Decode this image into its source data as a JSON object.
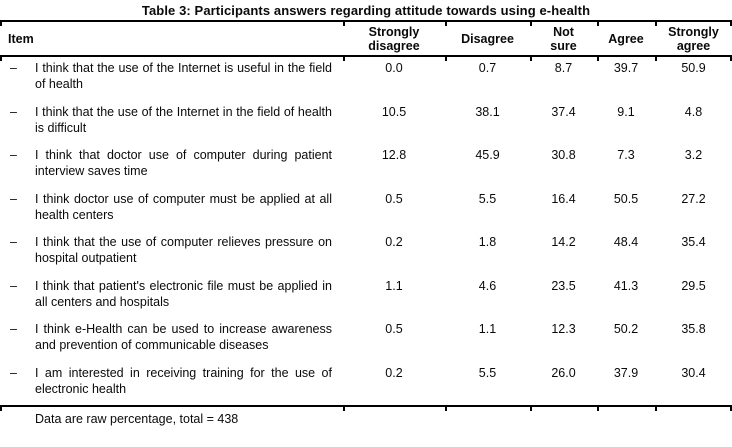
{
  "title": "Table 3: Participants answers regarding attitude towards using e-health",
  "table": {
    "headers": [
      "Item",
      "Strongly\ndisagree",
      "Disagree",
      "Not\nsure",
      "Agree",
      "Strongly\nagree"
    ],
    "bullet": "–",
    "rows": [
      {
        "text": "I think that the use of the Internet is useful in the field of health",
        "values": [
          "0.0",
          "0.7",
          "8.7",
          "39.7",
          "50.9"
        ]
      },
      {
        "text": "I think that the use of the Internet in the field of health is difficult",
        "values": [
          "10.5",
          "38.1",
          "37.4",
          "9.1",
          "4.8"
        ]
      },
      {
        "text": "I think that doctor use of computer during patient interview saves time",
        "values": [
          "12.8",
          "45.9",
          "30.8",
          "7.3",
          "3.2"
        ]
      },
      {
        "text": "I think doctor use of computer must be applied at all health centers",
        "values": [
          "0.5",
          "5.5",
          "16.4",
          "50.5",
          "27.2"
        ]
      },
      {
        "text": "I think that the use of computer relieves pressure on hospital outpatient",
        "values": [
          "0.2",
          "1.8",
          "14.2",
          "48.4",
          "35.4"
        ]
      },
      {
        "text": "I think that patient's electronic file must be applied in all centers and hospitals",
        "values": [
          "1.1",
          "4.6",
          "23.5",
          "41.3",
          "29.5"
        ]
      },
      {
        "text": "I think e-Health can be used to increase awareness and prevention of communicable diseases",
        "values": [
          "0.5",
          "1.1",
          "12.3",
          "50.2",
          "35.8"
        ]
      },
      {
        "text": "I am interested in receiving training for the use of electronic health",
        "values": [
          "0.2",
          "5.5",
          "26.0",
          "37.9",
          "30.4"
        ]
      }
    ]
  },
  "footnote": {
    "text": "Data are raw percentage, total = 438"
  },
  "colors": {
    "rule": "#000000",
    "text": "#0a0a0a",
    "background": "#ffffff"
  }
}
